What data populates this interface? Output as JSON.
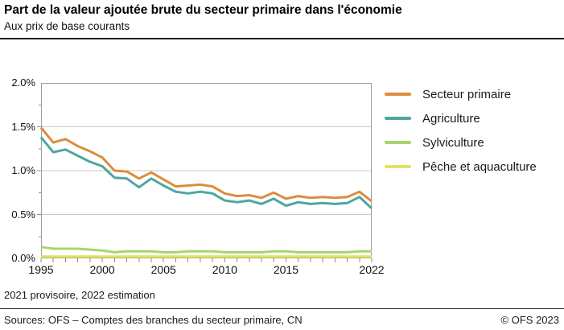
{
  "header": {
    "title": "Part de la valeur ajoutée brute du secteur primaire dans l'économie",
    "subtitle": "Aux prix de base courants"
  },
  "footnote": "2021 provisoire, 2022 estimation",
  "footer": {
    "sources": "Sources: OFS – Comptes des branches du secteur primaire, CN",
    "copyright": "© OFS 2023"
  },
  "colors": {
    "secteur_primaire": "#DD8C3E",
    "agriculture": "#4EA79F",
    "sylviculture": "#A9D46E",
    "peche_aquaculture": "#E0E35F",
    "gridline": "#C9C9C9",
    "plot_border": "#9E9E9E",
    "tick": "#8C8C8C",
    "rule": "#1f1f1f"
  },
  "chart_data": {
    "type": "line",
    "title": "Part de la valeur ajoutée brute du secteur primaire dans l'économie",
    "subtitle": "Aux prix de base courants",
    "xlabel": "",
    "ylabel": "",
    "ylim": [
      0,
      2.0
    ],
    "grid": true,
    "grid_values": [
      0.5,
      1.0,
      1.5
    ],
    "legend_position": "right",
    "x": [
      1995,
      1996,
      1997,
      1998,
      1999,
      2000,
      2001,
      2002,
      2003,
      2004,
      2005,
      2006,
      2007,
      2008,
      2009,
      2010,
      2011,
      2012,
      2013,
      2014,
      2015,
      2016,
      2017,
      2018,
      2019,
      2020,
      2021,
      2022
    ],
    "yticks": [
      {
        "value": 0.0,
        "label": "0.0%"
      },
      {
        "value": 0.5,
        "label": "0.5%"
      },
      {
        "value": 1.0,
        "label": "1.0%"
      },
      {
        "value": 1.5,
        "label": "1.5%"
      },
      {
        "value": 2.0,
        "label": "2.0%"
      }
    ],
    "xticks": [
      {
        "year": 1995,
        "label": "1995"
      },
      {
        "year": 2000,
        "label": "2000"
      },
      {
        "year": 2005,
        "label": "2005"
      },
      {
        "year": 2010,
        "label": "2010"
      },
      {
        "year": 2015,
        "label": "2015"
      },
      {
        "year": 2022,
        "label": "2022"
      }
    ],
    "series": [
      {
        "key": "peche_aquaculture",
        "name": "Pêche et aquaculture",
        "color": "#E0E35F",
        "values": [
          0.02,
          0.02,
          0.02,
          0.02,
          0.02,
          0.02,
          0.02,
          0.02,
          0.02,
          0.02,
          0.02,
          0.02,
          0.02,
          0.02,
          0.02,
          0.02,
          0.02,
          0.02,
          0.02,
          0.02,
          0.02,
          0.02,
          0.02,
          0.02,
          0.02,
          0.02,
          0.02,
          0.02
        ]
      },
      {
        "key": "sylviculture",
        "name": "Sylviculture",
        "color": "#A9D46E",
        "values": [
          0.13,
          0.11,
          0.11,
          0.11,
          0.1,
          0.09,
          0.07,
          0.08,
          0.08,
          0.08,
          0.07,
          0.07,
          0.08,
          0.08,
          0.08,
          0.07,
          0.07,
          0.07,
          0.07,
          0.08,
          0.08,
          0.07,
          0.07,
          0.07,
          0.07,
          0.07,
          0.08,
          0.08
        ]
      },
      {
        "key": "agriculture",
        "name": "Agriculture",
        "color": "#4EA79F",
        "values": [
          1.38,
          1.21,
          1.24,
          1.17,
          1.1,
          1.05,
          0.92,
          0.91,
          0.81,
          0.91,
          0.83,
          0.76,
          0.74,
          0.76,
          0.74,
          0.66,
          0.64,
          0.66,
          0.62,
          0.68,
          0.6,
          0.64,
          0.62,
          0.63,
          0.62,
          0.63,
          0.7,
          0.57
        ]
      },
      {
        "key": "secteur_primaire",
        "name": "Secteur primaire",
        "color": "#DD8C3E",
        "values": [
          1.49,
          1.32,
          1.36,
          1.28,
          1.22,
          1.15,
          1.0,
          0.99,
          0.91,
          0.98,
          0.9,
          0.82,
          0.83,
          0.84,
          0.82,
          0.74,
          0.71,
          0.72,
          0.69,
          0.75,
          0.68,
          0.71,
          0.69,
          0.7,
          0.69,
          0.7,
          0.76,
          0.65
        ]
      }
    ],
    "legend_order": [
      "secteur_primaire",
      "agriculture",
      "sylviculture",
      "peche_aquaculture"
    ]
  }
}
